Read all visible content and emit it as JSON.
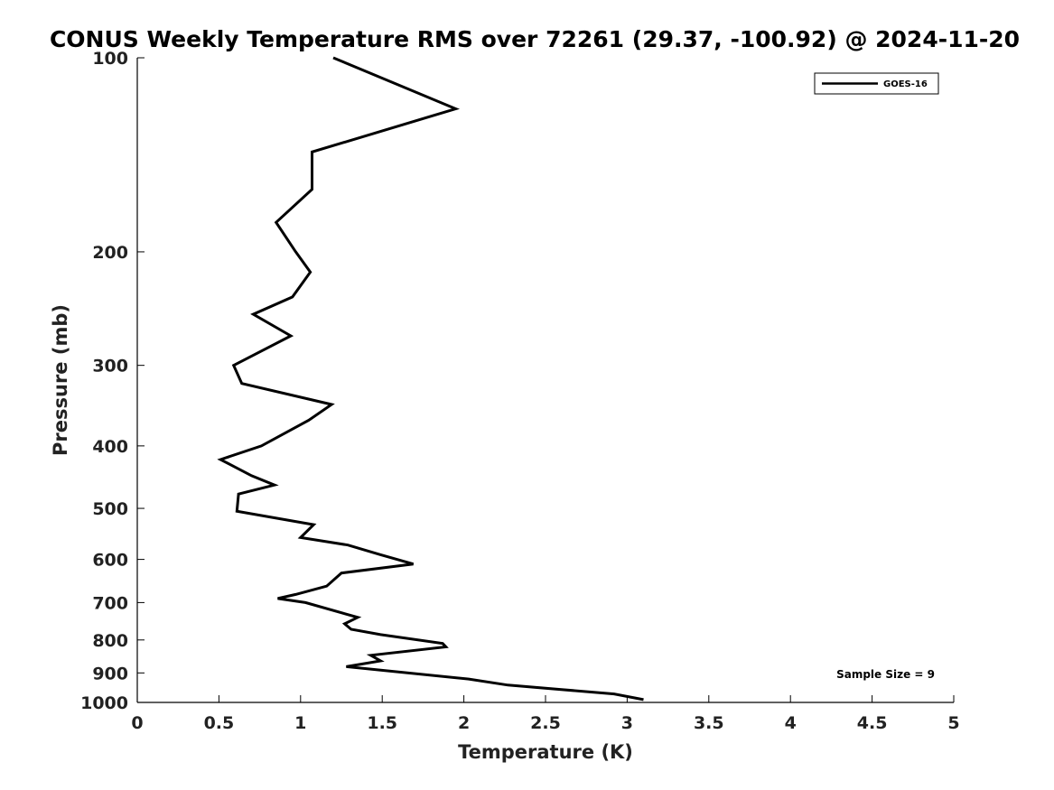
{
  "chart_data": {
    "type": "line",
    "title": "CONUS Weekly Temperature RMS over 72261 (29.37, -100.92) @ 2024-11-20",
    "xlabel": "Temperature (K)",
    "ylabel": "Pressure (mb)",
    "xlim": [
      0,
      5
    ],
    "ylim": [
      100,
      1000
    ],
    "yscale": "log",
    "y_reversed": true,
    "grid": false,
    "legend_position": "top-right",
    "x_ticks": [
      0,
      0.5,
      1,
      1.5,
      2,
      2.5,
      3,
      3.5,
      4,
      4.5,
      5
    ],
    "x_tick_labels": [
      "0",
      "0.5",
      "1",
      "1.5",
      "2",
      "2.5",
      "3",
      "3.5",
      "4",
      "4.5",
      "5"
    ],
    "y_ticks": [
      100,
      200,
      300,
      400,
      500,
      600,
      700,
      800,
      900,
      1000
    ],
    "y_tick_labels": [
      "100",
      "200",
      "300",
      "400",
      "500",
      "600",
      "700",
      "800",
      "900",
      "1000"
    ],
    "series": [
      {
        "name": "GOES-16",
        "color": "#000000",
        "x": [
          1.2,
          1.95,
          1.07,
          1.07,
          0.85,
          0.97,
          1.06,
          0.95,
          0.71,
          0.94,
          0.59,
          0.64,
          1.19,
          1.05,
          0.76,
          0.51,
          0.7,
          0.84,
          0.62,
          0.61,
          1.08,
          1.0,
          1.29,
          1.49,
          1.69,
          1.25,
          1.16,
          0.97,
          0.86,
          1.03,
          1.35,
          1.27,
          1.31,
          1.49,
          1.87,
          1.89,
          1.43,
          1.49,
          1.28,
          2.03,
          2.27,
          2.92,
          3.1
        ],
        "y": [
          100,
          120,
          140,
          160,
          180,
          200,
          215,
          235,
          250,
          270,
          300,
          320,
          345,
          365,
          400,
          420,
          445,
          460,
          475,
          505,
          530,
          555,
          570,
          590,
          610,
          630,
          660,
          680,
          690,
          700,
          738,
          755,
          770,
          785,
          810,
          820,
          845,
          862,
          880,
          920,
          940,
          970,
          990
        ]
      }
    ],
    "annotation": "Sample Size = 9"
  }
}
